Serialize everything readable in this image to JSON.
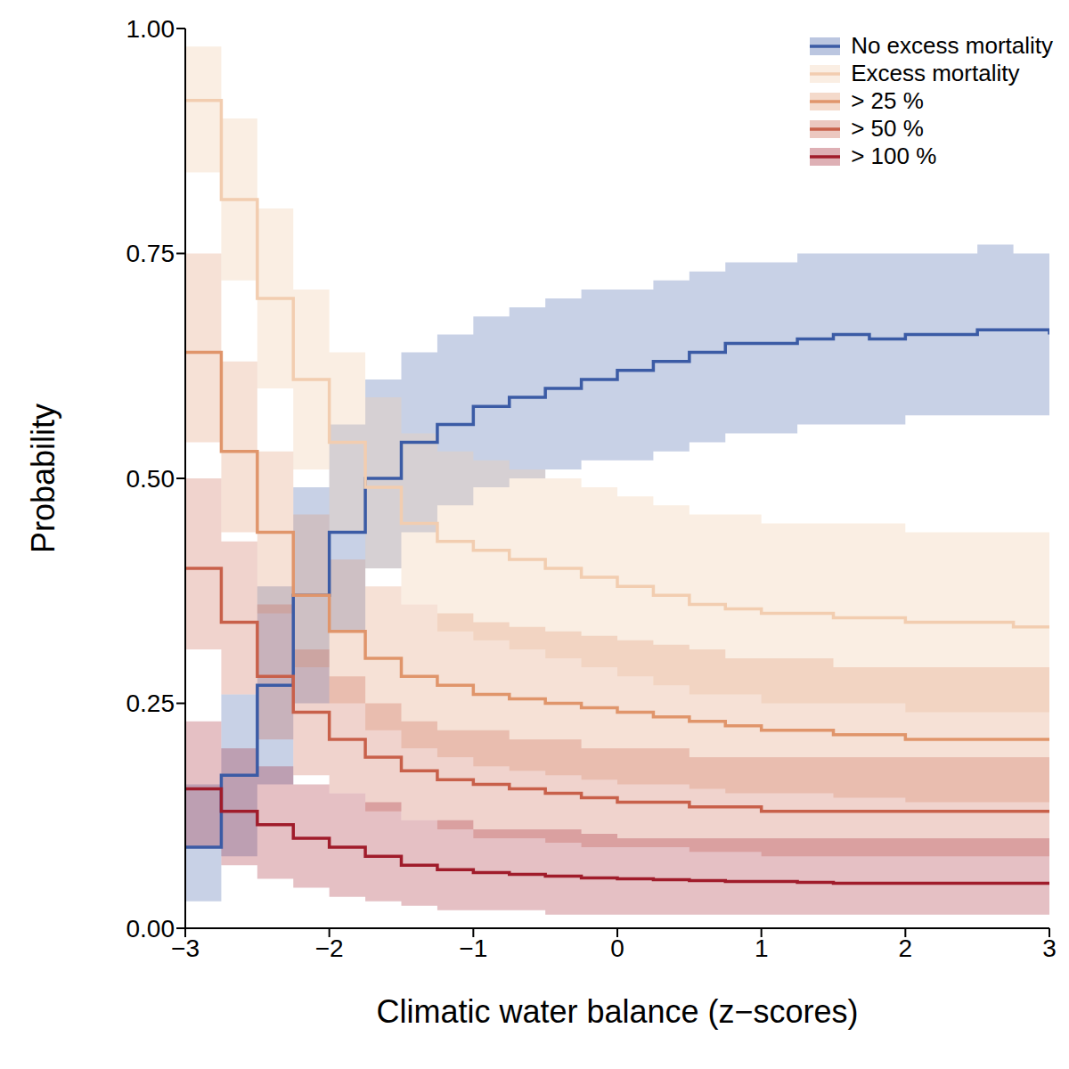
{
  "chart_data": {
    "type": "line",
    "line_style": "steps",
    "grid": false,
    "legend": "upper right",
    "x_label": "Climatic water balance (z−scores)",
    "y_label": "Probability",
    "xlim": [
      -3,
      3
    ],
    "ylim": [
      0,
      1
    ],
    "xticks": [
      {
        "value": -3,
        "label": "−3"
      },
      {
        "value": -2,
        "label": "−2"
      },
      {
        "value": -1,
        "label": "−1"
      },
      0,
      1,
      2,
      3
    ],
    "yticks": [
      {
        "value": 0,
        "label": "0.00"
      },
      {
        "value": 0.25,
        "label": "0.25"
      },
      {
        "value": 0.5,
        "label": "0.50"
      },
      {
        "value": 0.75,
        "label": "0.75"
      },
      {
        "value": 1,
        "label": "1.00"
      }
    ],
    "x": [
      -3,
      -2.75,
      -2.5,
      -2.25,
      -2,
      -1.75,
      -1.5,
      -1.25,
      -1,
      -0.75,
      -0.5,
      -0.25,
      0,
      0.25,
      0.5,
      0.75,
      1,
      1.25,
      1.5,
      1.75,
      2,
      2.25,
      2.5,
      2.75,
      3
    ],
    "series": [
      {
        "name": "No excess mortality",
        "color": "#3b5ba5",
        "values": [
          0.09,
          0.17,
          0.27,
          0.37,
          0.44,
          0.5,
          0.54,
          0.56,
          0.58,
          0.59,
          0.6,
          0.61,
          0.62,
          0.63,
          0.64,
          0.65,
          0.65,
          0.655,
          0.66,
          0.655,
          0.66,
          0.66,
          0.665,
          0.665,
          0.66
        ],
        "lower": [
          0.03,
          0.08,
          0.16,
          0.25,
          0.33,
          0.4,
          0.44,
          0.47,
          0.49,
          0.5,
          0.51,
          0.52,
          0.52,
          0.53,
          0.54,
          0.55,
          0.55,
          0.56,
          0.56,
          0.56,
          0.57,
          0.57,
          0.57,
          0.57,
          0.57
        ],
        "upper": [
          0.16,
          0.26,
          0.38,
          0.49,
          0.56,
          0.61,
          0.64,
          0.66,
          0.68,
          0.69,
          0.7,
          0.71,
          0.71,
          0.72,
          0.73,
          0.74,
          0.74,
          0.75,
          0.75,
          0.75,
          0.75,
          0.75,
          0.76,
          0.75,
          0.75
        ]
      },
      {
        "name": "Excess mortality",
        "color": "#f2cdb0",
        "values": [
          0.92,
          0.81,
          0.7,
          0.61,
          0.54,
          0.49,
          0.45,
          0.43,
          0.42,
          0.41,
          0.4,
          0.39,
          0.38,
          0.37,
          0.36,
          0.355,
          0.35,
          0.35,
          0.345,
          0.345,
          0.34,
          0.34,
          0.34,
          0.335,
          0.335
        ],
        "lower": [
          0.84,
          0.72,
          0.6,
          0.51,
          0.44,
          0.4,
          0.36,
          0.33,
          0.32,
          0.31,
          0.3,
          0.29,
          0.28,
          0.27,
          0.26,
          0.26,
          0.25,
          0.25,
          0.25,
          0.25,
          0.24,
          0.24,
          0.24,
          0.24,
          0.24
        ],
        "upper": [
          0.98,
          0.9,
          0.8,
          0.71,
          0.64,
          0.59,
          0.55,
          0.53,
          0.52,
          0.51,
          0.5,
          0.49,
          0.48,
          0.47,
          0.46,
          0.46,
          0.45,
          0.45,
          0.45,
          0.45,
          0.44,
          0.44,
          0.44,
          0.44,
          0.44
        ]
      },
      {
        "name": "> 25 %",
        "color": "#e0956b",
        "values": [
          0.64,
          0.53,
          0.44,
          0.37,
          0.33,
          0.3,
          0.28,
          0.27,
          0.26,
          0.255,
          0.25,
          0.245,
          0.24,
          0.235,
          0.23,
          0.225,
          0.22,
          0.22,
          0.215,
          0.215,
          0.21,
          0.21,
          0.21,
          0.21,
          0.21
        ],
        "lower": [
          0.54,
          0.44,
          0.35,
          0.29,
          0.25,
          0.22,
          0.2,
          0.19,
          0.18,
          0.175,
          0.17,
          0.165,
          0.16,
          0.16,
          0.155,
          0.15,
          0.15,
          0.15,
          0.145,
          0.145,
          0.14,
          0.14,
          0.14,
          0.14,
          0.14
        ],
        "upper": [
          0.75,
          0.63,
          0.53,
          0.46,
          0.41,
          0.38,
          0.36,
          0.35,
          0.34,
          0.335,
          0.33,
          0.325,
          0.32,
          0.315,
          0.31,
          0.3,
          0.3,
          0.3,
          0.29,
          0.29,
          0.29,
          0.29,
          0.29,
          0.29,
          0.29
        ]
      },
      {
        "name": "> 50 %",
        "color": "#c8604a",
        "values": [
          0.4,
          0.34,
          0.28,
          0.24,
          0.21,
          0.19,
          0.175,
          0.165,
          0.16,
          0.155,
          0.15,
          0.145,
          0.14,
          0.14,
          0.135,
          0.135,
          0.13,
          0.13,
          0.13,
          0.13,
          0.13,
          0.13,
          0.13,
          0.13,
          0.13
        ],
        "lower": [
          0.31,
          0.26,
          0.21,
          0.17,
          0.15,
          0.13,
          0.12,
          0.11,
          0.1,
          0.1,
          0.095,
          0.09,
          0.09,
          0.09,
          0.085,
          0.085,
          0.08,
          0.08,
          0.08,
          0.08,
          0.08,
          0.08,
          0.08,
          0.08,
          0.08
        ],
        "upper": [
          0.5,
          0.43,
          0.36,
          0.31,
          0.28,
          0.25,
          0.23,
          0.22,
          0.22,
          0.21,
          0.21,
          0.2,
          0.2,
          0.2,
          0.19,
          0.19,
          0.19,
          0.19,
          0.19,
          0.19,
          0.19,
          0.19,
          0.19,
          0.19,
          0.19
        ]
      },
      {
        "name": "> 100 %",
        "color": "#a01c2b",
        "values": [
          0.155,
          0.13,
          0.115,
          0.1,
          0.09,
          0.08,
          0.07,
          0.065,
          0.062,
          0.06,
          0.058,
          0.056,
          0.055,
          0.054,
          0.053,
          0.052,
          0.052,
          0.051,
          0.05,
          0.05,
          0.05,
          0.05,
          0.05,
          0.05,
          0.05
        ],
        "lower": [
          0.09,
          0.07,
          0.055,
          0.045,
          0.035,
          0.03,
          0.025,
          0.02,
          0.02,
          0.02,
          0.015,
          0.015,
          0.015,
          0.015,
          0.015,
          0.015,
          0.015,
          0.015,
          0.015,
          0.015,
          0.015,
          0.015,
          0.015,
          0.015,
          0.015
        ],
        "upper": [
          0.23,
          0.2,
          0.18,
          0.16,
          0.15,
          0.14,
          0.12,
          0.12,
          0.11,
          0.11,
          0.11,
          0.105,
          0.1,
          0.1,
          0.1,
          0.1,
          0.1,
          0.1,
          0.1,
          0.1,
          0.1,
          0.1,
          0.1,
          0.1,
          0.1
        ]
      }
    ]
  }
}
